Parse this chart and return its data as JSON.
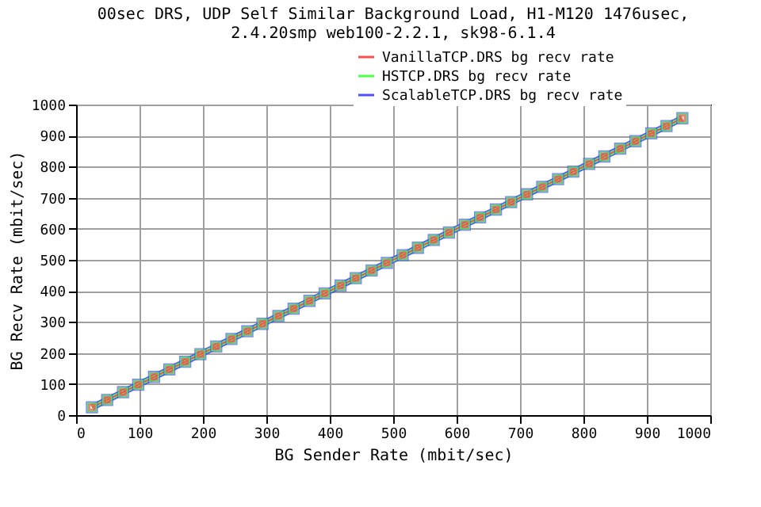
{
  "chart_data": {
    "type": "line",
    "title": [
      "00sec DRS, UDP Self Similar Background Load, H1-M120 1476usec,",
      "2.4.20smp web100-2.2.1, sk98-6.1.4"
    ],
    "xlabel": "BG Sender Rate (mbit/sec)",
    "ylabel": "BG Recv Rate (mbit/sec)",
    "x": [
      25,
      49,
      74,
      98,
      123,
      147,
      172,
      196,
      221,
      245,
      270,
      294,
      319,
      343,
      368,
      392,
      417,
      441,
      466,
      490,
      515,
      539,
      564,
      588,
      613,
      637,
      662,
      686,
      711,
      735,
      760,
      784,
      809,
      833,
      858,
      882,
      907,
      931,
      956
    ],
    "series": [
      {
        "name": "VanillaTCP.DRS bg recv rate",
        "color": "#ff5050",
        "values": [
          25,
          49,
          74,
          98,
          123,
          147,
          172,
          196,
          221,
          245,
          270,
          294,
          319,
          343,
          368,
          392,
          417,
          441,
          466,
          490,
          515,
          539,
          564,
          588,
          613,
          637,
          662,
          686,
          711,
          735,
          760,
          784,
          809,
          833,
          858,
          882,
          907,
          931,
          956
        ]
      },
      {
        "name": "HSTCP.DRS bg recv rate",
        "color": "#50ff50",
        "values": [
          25,
          49,
          74,
          98,
          123,
          147,
          172,
          196,
          221,
          245,
          270,
          294,
          319,
          343,
          368,
          392,
          417,
          441,
          466,
          490,
          515,
          539,
          564,
          588,
          613,
          637,
          662,
          686,
          711,
          735,
          760,
          784,
          809,
          833,
          858,
          882,
          907,
          931,
          956
        ]
      },
      {
        "name": "ScalableTCP.DRS bg recv rate",
        "color": "#5050ff",
        "values": [
          25,
          49,
          74,
          98,
          123,
          147,
          172,
          196,
          221,
          245,
          270,
          294,
          319,
          343,
          368,
          392,
          417,
          441,
          466,
          490,
          515,
          539,
          564,
          588,
          613,
          637,
          662,
          686,
          711,
          735,
          760,
          784,
          809,
          833,
          858,
          882,
          907,
          931,
          956
        ]
      }
    ],
    "xlim": [
      0,
      1000
    ],
    "xticks": [
      0,
      100,
      200,
      300,
      400,
      500,
      600,
      700,
      800,
      900,
      1000
    ],
    "ylim": [
      0,
      1000
    ],
    "yticks": [
      0,
      100,
      200,
      300,
      400,
      500,
      600,
      700,
      800,
      900,
      1000
    ],
    "grid": true,
    "legend": "top right",
    "marker": "square"
  }
}
